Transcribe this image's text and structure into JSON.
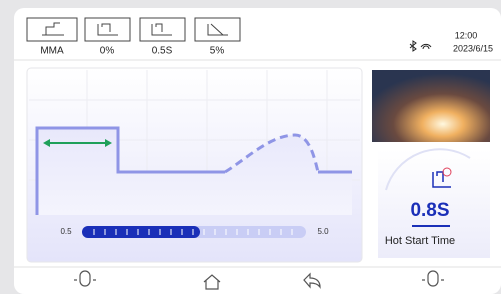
{
  "status_bar": {
    "modes": [
      {
        "label": "MMA"
      },
      {
        "label": "0%"
      },
      {
        "label": "0.5S"
      },
      {
        "label": "5%"
      }
    ],
    "time": "12:00",
    "date": "2023/6/15"
  },
  "waveform": {
    "slider_min": "0.5",
    "slider_max": "5.0"
  },
  "parameter": {
    "value": "0.8S",
    "name": "Hot Start Time"
  }
}
